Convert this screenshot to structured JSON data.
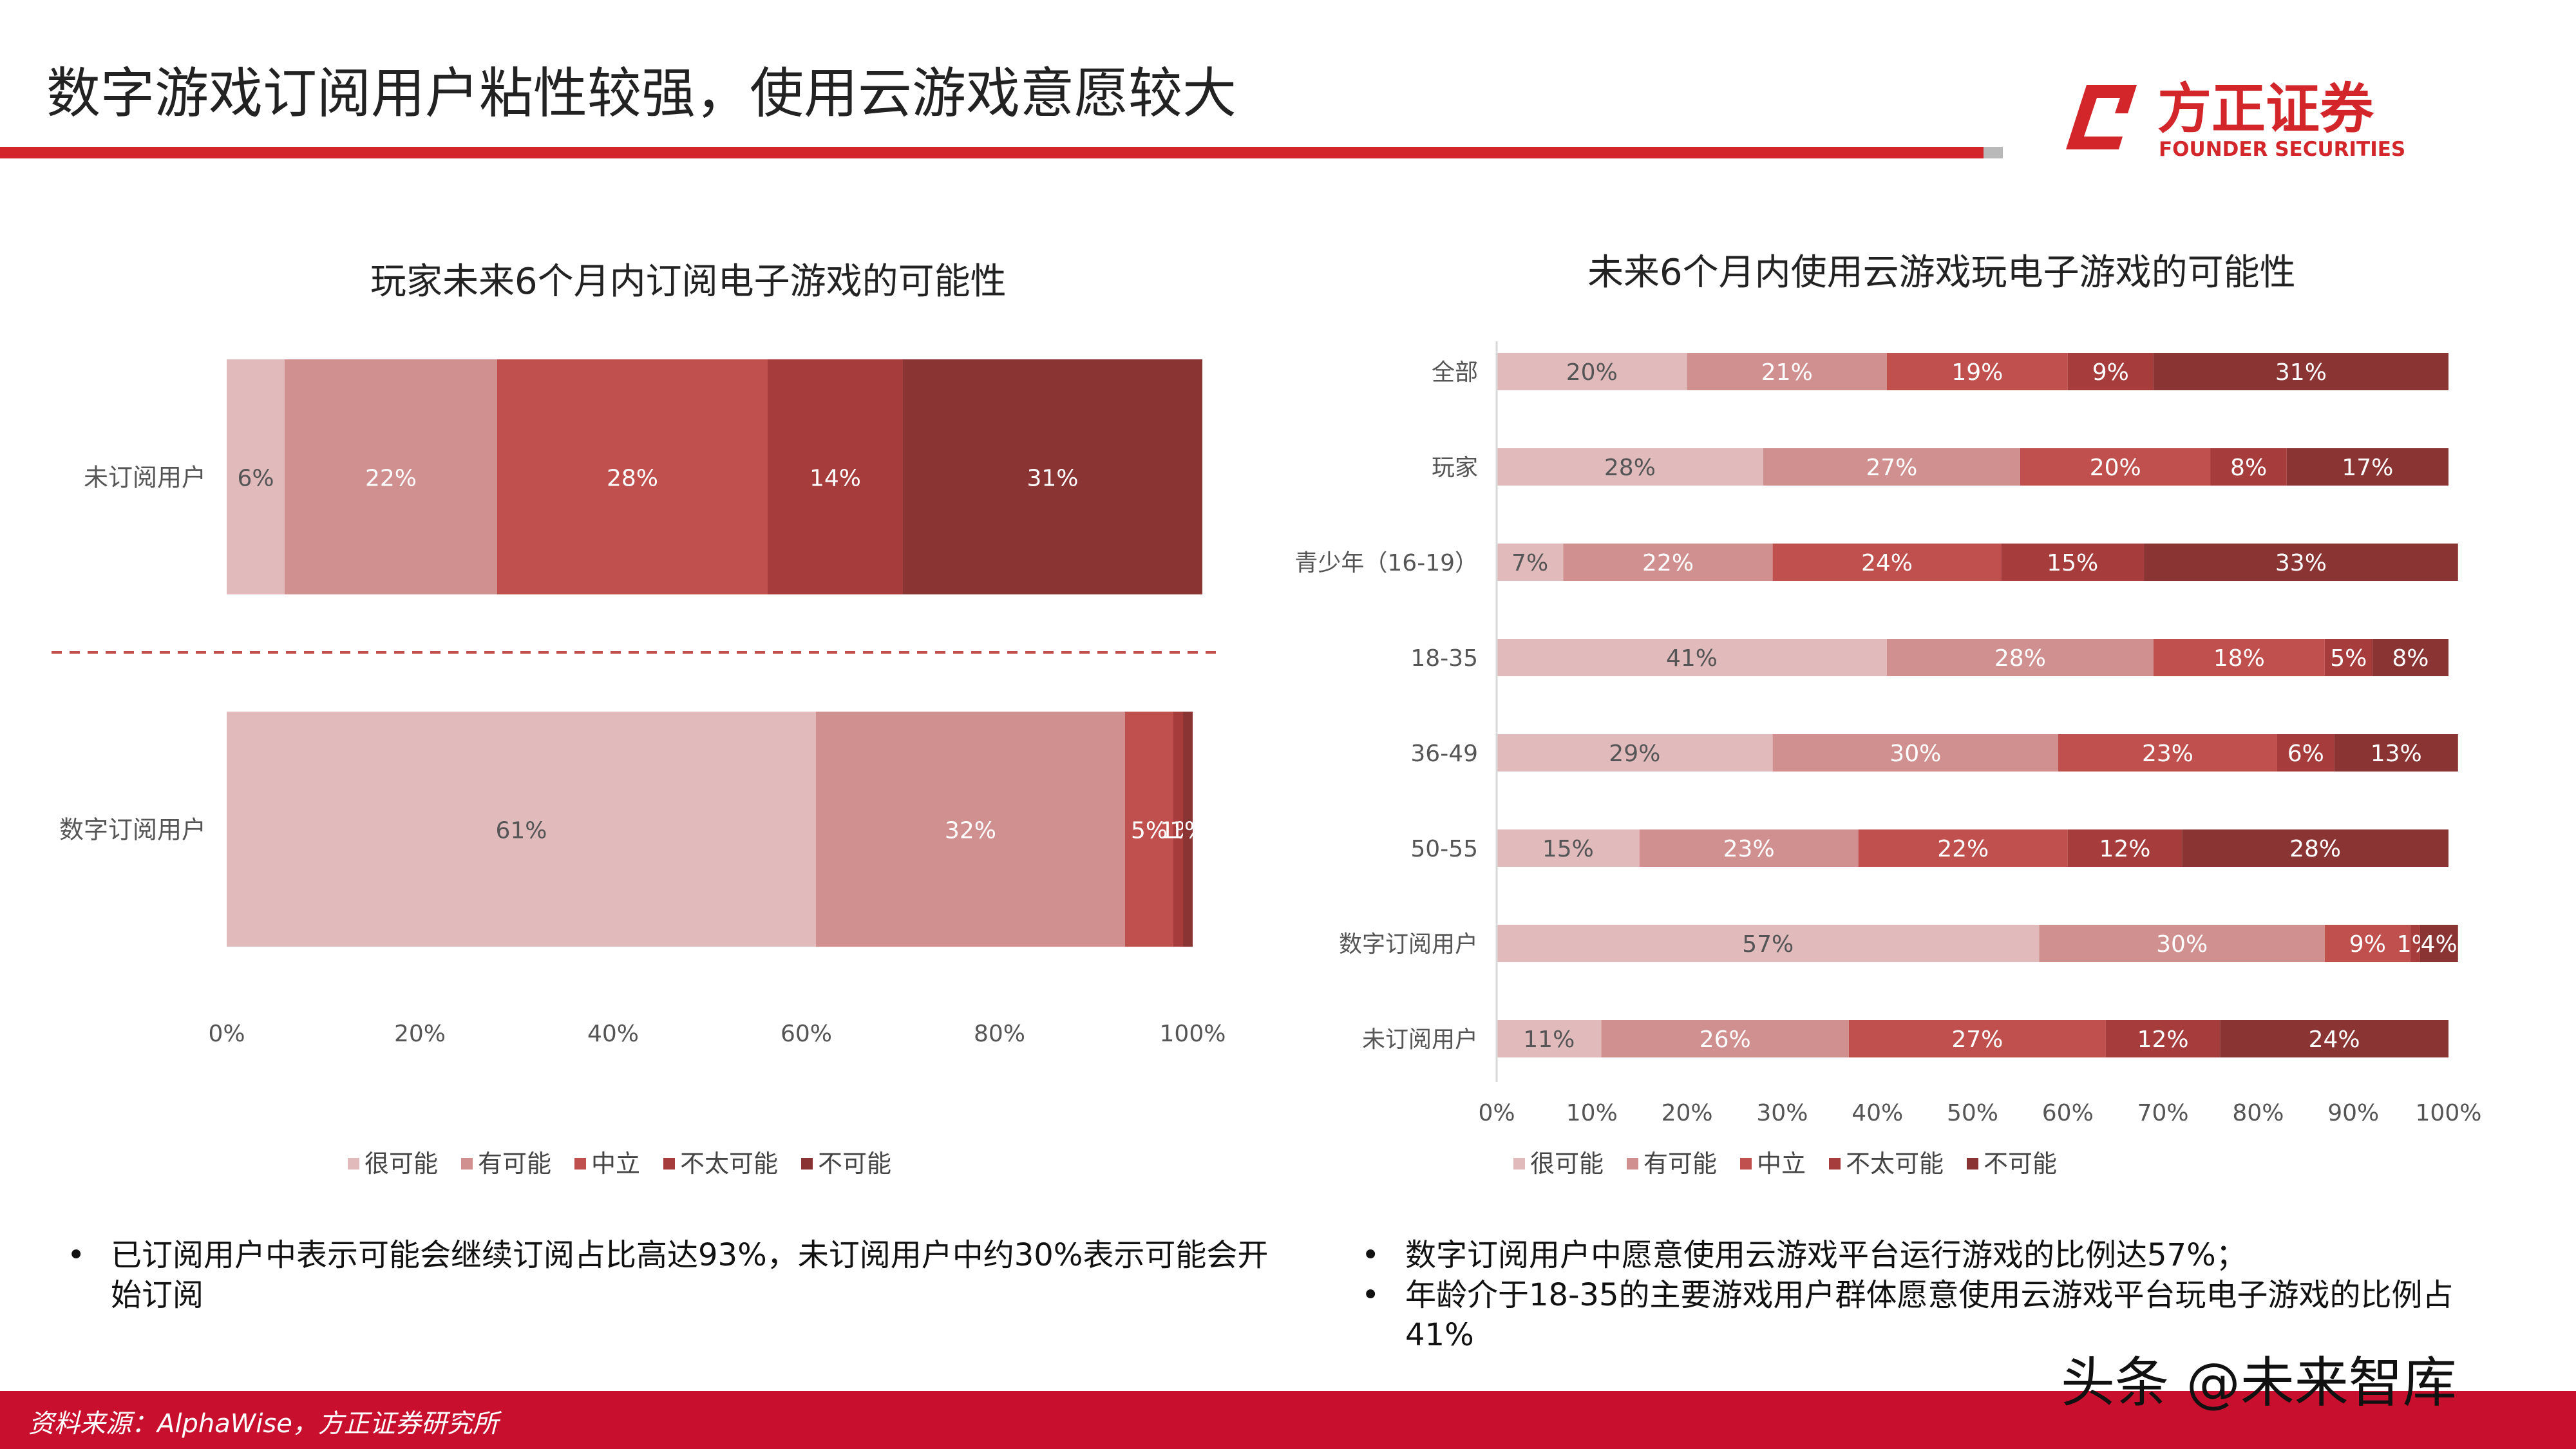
{
  "header": {
    "title": "数字游戏订阅用户粘性较强，使用云游戏意愿较大",
    "logo_cn": "方正证券",
    "logo_en": "FOUNDER SECURITIES"
  },
  "legend_labels": [
    "很可能",
    "有可能",
    "中立",
    "不太可能",
    "不可能"
  ],
  "colors": {
    "series": [
      "#e1bbbb",
      "#d09090",
      "#c0504d",
      "#a63c3c",
      "#8b3434"
    ],
    "title_rule": "#d2262b",
    "footer": "#c8102e",
    "divider": "#c0504d"
  },
  "chart_data": [
    {
      "type": "bar",
      "orientation": "horizontal",
      "stacked": true,
      "title": "玩家未来6个月内订阅电子游戏的可能性",
      "categories": [
        "未订阅用户",
        "数字订阅用户"
      ],
      "series": [
        {
          "name": "很可能",
          "values": [
            6,
            61
          ]
        },
        {
          "name": "有可能",
          "values": [
            22,
            32
          ]
        },
        {
          "name": "中立",
          "values": [
            28,
            5
          ]
        },
        {
          "name": "不太可能",
          "values": [
            14,
            1
          ]
        },
        {
          "name": "不可能",
          "values": [
            31,
            1
          ]
        }
      ],
      "value_labels": [
        [
          "6%",
          "22%",
          "28%",
          "14%",
          "31%"
        ],
        [
          "61%",
          "32%",
          "5%",
          "1%",
          "1%"
        ]
      ],
      "x_ticks": [
        "0%",
        "20%",
        "40%",
        "60%",
        "80%",
        "100%"
      ],
      "xlim": [
        0,
        100
      ],
      "legend_position": "bottom"
    },
    {
      "type": "bar",
      "orientation": "horizontal",
      "stacked": true,
      "title": "未来6个月内使用云游戏玩电子游戏的可能性",
      "categories": [
        "全部",
        "玩家",
        "青少年（16-19）",
        "18-35",
        "36-49",
        "50-55",
        "数字订阅用户",
        "未订阅用户"
      ],
      "series": [
        {
          "name": "很可能",
          "values": [
            20,
            28,
            7,
            41,
            29,
            15,
            57,
            11
          ]
        },
        {
          "name": "有可能",
          "values": [
            21,
            27,
            22,
            28,
            30,
            23,
            30,
            26
          ]
        },
        {
          "name": "中立",
          "values": [
            19,
            20,
            24,
            18,
            23,
            22,
            9,
            27
          ]
        },
        {
          "name": "不太可能",
          "values": [
            9,
            8,
            15,
            5,
            6,
            12,
            1,
            12
          ]
        },
        {
          "name": "不可能",
          "values": [
            31,
            17,
            33,
            8,
            13,
            28,
            4,
            24
          ]
        }
      ],
      "x_ticks": [
        "0%",
        "10%",
        "20%",
        "30%",
        "40%",
        "50%",
        "60%",
        "70%",
        "80%",
        "90%",
        "100%"
      ],
      "xlim": [
        0,
        100
      ],
      "legend_position": "bottom"
    }
  ],
  "notes": {
    "left": [
      "已订阅用户中表示可能会继续订阅占比高达93%，未订阅用户中约30%表示可能会开始订阅"
    ],
    "right": [
      "数字订阅用户中愿意使用云游戏平台运行游戏的比例达57%；",
      "年龄介于18-35的主要游戏用户群体愿意使用云游戏平台玩电子游戏的比例占41%"
    ]
  },
  "footer": {
    "source": "资料来源：AlphaWise，方正证券研究所",
    "watermark": "头条 @未来智库"
  }
}
